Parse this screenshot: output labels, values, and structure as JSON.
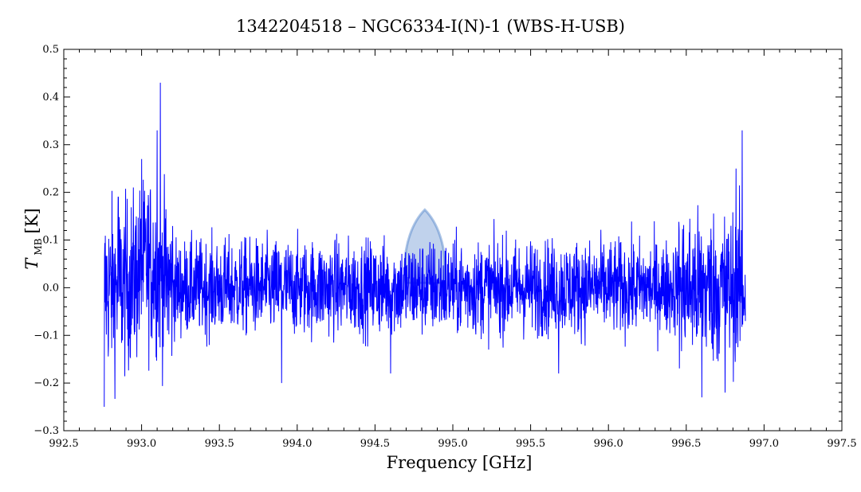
{
  "chart_data": {
    "type": "line",
    "title": "1342204518 – NGC6334-I(N)-1 (WBS-H-USB)",
    "xlabel": "Frequency [GHz]",
    "ylabel_symbol": "T",
    "ylabel_subscript": "MB",
    "ylabel_unit": "[K]",
    "xlim": [
      992.5,
      997.5
    ],
    "ylim": [
      -0.3,
      0.5
    ],
    "x_ticks": [
      "992.5",
      "993.0",
      "993.5",
      "994.0",
      "994.5",
      "995.0",
      "995.5",
      "996.0",
      "996.5",
      "997.0",
      "997.5"
    ],
    "y_ticks": [
      "−0.3",
      "−0.2",
      "−0.1",
      "0.0",
      "0.1",
      "0.2",
      "0.3",
      "0.4",
      "0.5"
    ],
    "grid": false,
    "series": [
      {
        "color": "#0000ff",
        "x_range": [
          992.76,
          996.88
        ],
        "baseline_rms": 0.05,
        "notable_points": [
          {
            "x": 992.76,
            "y": -0.25
          },
          {
            "x": 992.85,
            "y": 0.19
          },
          {
            "x": 993.0,
            "y": 0.27
          },
          {
            "x": 993.1,
            "y": 0.33
          },
          {
            "x": 993.12,
            "y": 0.43
          },
          {
            "x": 993.9,
            "y": -0.2
          },
          {
            "x": 994.6,
            "y": -0.18
          },
          {
            "x": 995.68,
            "y": -0.18
          },
          {
            "x": 996.6,
            "y": -0.23
          },
          {
            "x": 996.75,
            "y": -0.22
          },
          {
            "x": 996.82,
            "y": 0.25
          },
          {
            "x": 996.86,
            "y": 0.33
          },
          {
            "x": 996.88,
            "y": -0.07
          }
        ]
      }
    ],
    "watermark_color": "#4a7fc8"
  }
}
